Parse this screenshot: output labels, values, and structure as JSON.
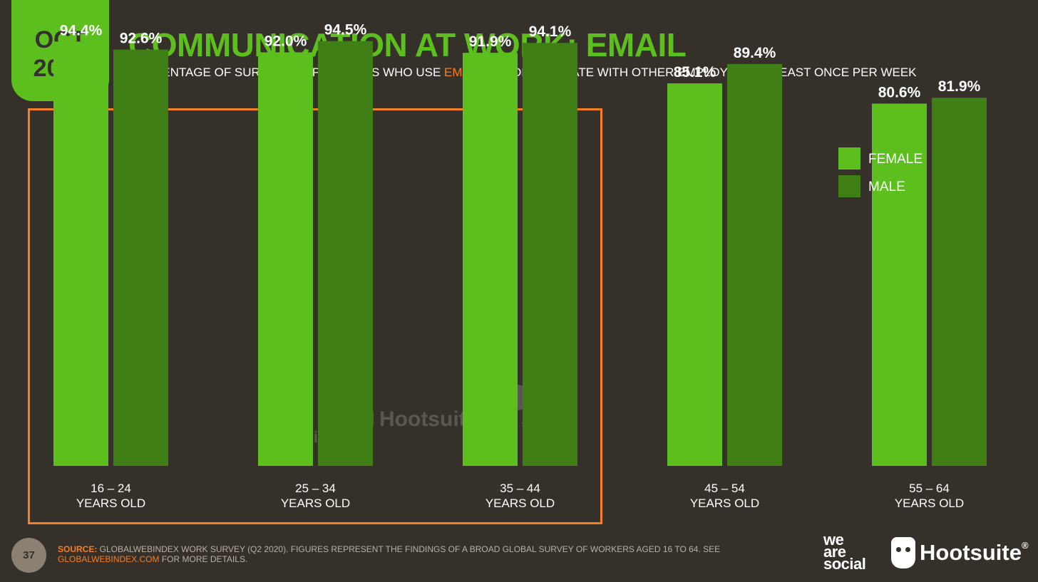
{
  "header": {
    "date_month": "OCT",
    "date_year": "2020",
    "title": "COMMUNICATION AT WORK: EMAIL",
    "subtitle_before": "PERCENTAGE OF SURVEY RESPONDENTS WHO USE ",
    "subtitle_highlight": "EMAIL",
    "subtitle_after": " TO COMMUNICATE WITH OTHER EMPLOYEES AT LEAST ONCE PER WEEK"
  },
  "chart_data": {
    "type": "bar",
    "categories": [
      "16 – 24 YEARS OLD",
      "25 – 34 YEARS OLD",
      "35 – 44 YEARS OLD",
      "45 – 54 YEARS OLD",
      "55 – 64 YEARS OLD"
    ],
    "category_lines": [
      [
        "16 – 24",
        "YEARS OLD"
      ],
      [
        "25 – 34",
        "YEARS OLD"
      ],
      [
        "35 – 44",
        "YEARS OLD"
      ],
      [
        "45 – 54",
        "YEARS OLD"
      ],
      [
        "55 – 64",
        "YEARS OLD"
      ]
    ],
    "series": [
      {
        "name": "FEMALE",
        "values": [
          94.4,
          92.0,
          91.9,
          85.1,
          80.6
        ],
        "labels": [
          "94.4%",
          "92.0%",
          "91.9%",
          "85.1%",
          "80.6%"
        ],
        "color": "#5cbf1e"
      },
      {
        "name": "MALE",
        "values": [
          92.6,
          94.5,
          94.1,
          89.4,
          81.9
        ],
        "labels": [
          "92.6%",
          "94.5%",
          "94.1%",
          "89.4%",
          "81.9%"
        ],
        "color": "#3f7f16"
      }
    ],
    "highlighted_categories": [
      "16 – 24 YEARS OLD",
      "25 – 34 YEARS OLD",
      "35 – 44 YEARS OLD"
    ],
    "legend_position": "right",
    "grid": false,
    "highlight_color": "#f47f24"
  },
  "footer": {
    "page_number": "37",
    "source_label": "SOURCE:",
    "source_text": " GLOBALWEBINDEX WORK SURVEY (Q2 2020). FIGURES REPRESENT THE FINDINGS OF A BROAD GLOBAL SURVEY OF WORKERS AGED 16 TO 64. SEE ",
    "source_link": "GLOBALWEBINDEX.COM",
    "source_after": " FOR MORE DETAILS.",
    "we_are_social": [
      "we",
      "are",
      "social"
    ],
    "hootsuite": "Hootsuite",
    "hootsuite_mark": "®"
  },
  "watermarks": {
    "we_are_social": [
      "we",
      "are",
      "social"
    ],
    "hootsuite": "Hootsuite",
    "hootsuite_mark": "®",
    "gwi": [
      "global",
      "web",
      "index"
    ]
  },
  "colors": {
    "background": "#35302a",
    "accent_green": "#5cbf1e",
    "dark_green": "#3f7f16",
    "orange": "#f47f24"
  }
}
